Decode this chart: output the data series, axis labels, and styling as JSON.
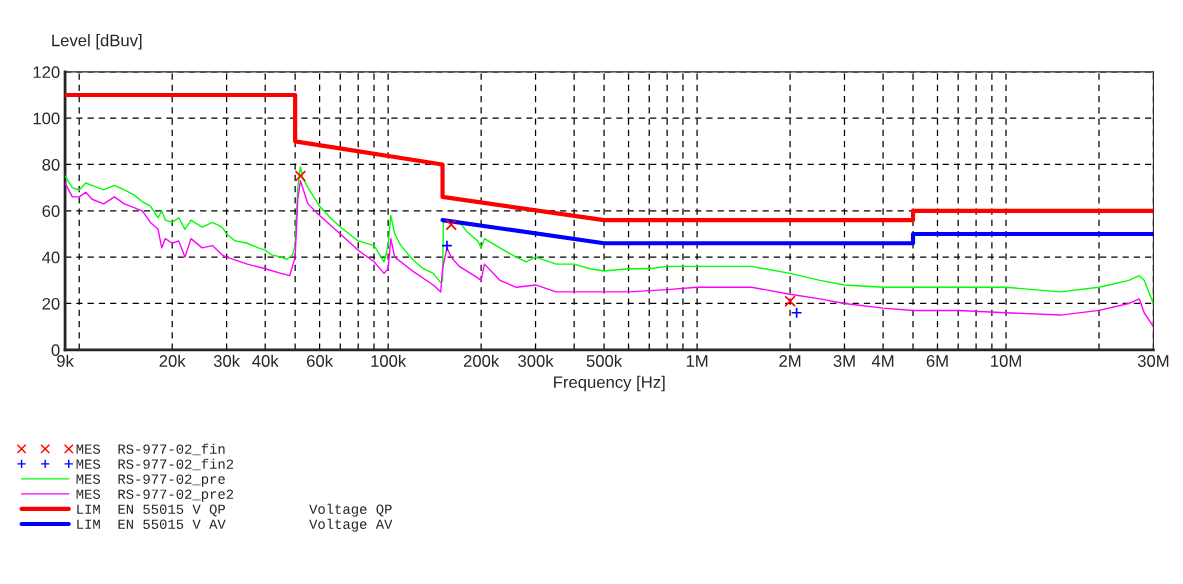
{
  "chart_data": {
    "type": "line",
    "xlabel": "Frequency [Hz]",
    "ylabel": "Level [dBuv]",
    "log": "x",
    "grid": true,
    "legend": "bottom",
    "xlim": [
      9000,
      30000000
    ],
    "ylim": [
      0,
      120
    ],
    "yticks": [
      0,
      20,
      40,
      60,
      80,
      100,
      120
    ],
    "xticks": [
      {
        "value": 9000,
        "label": "9k"
      },
      {
        "value": 10000,
        "label": null
      },
      {
        "value": 20000,
        "label": "20k"
      },
      {
        "value": 30000,
        "label": "30k"
      },
      {
        "value": 40000,
        "label": "40k"
      },
      {
        "value": 50000,
        "label": null
      },
      {
        "value": 60000,
        "label": "60k"
      },
      {
        "value": 70000,
        "label": null
      },
      {
        "value": 80000,
        "label": null
      },
      {
        "value": 90000,
        "label": null
      },
      {
        "value": 100000,
        "label": "100k"
      },
      {
        "value": 200000,
        "label": "200k"
      },
      {
        "value": 300000,
        "label": "300k"
      },
      {
        "value": 400000,
        "label": null
      },
      {
        "value": 500000,
        "label": "500k"
      },
      {
        "value": 600000,
        "label": null
      },
      {
        "value": 700000,
        "label": null
      },
      {
        "value": 800000,
        "label": null
      },
      {
        "value": 900000,
        "label": null
      },
      {
        "value": 1000000,
        "label": "1M"
      },
      {
        "value": 2000000,
        "label": "2M"
      },
      {
        "value": 3000000,
        "label": "3M"
      },
      {
        "value": 4000000,
        "label": "4M"
      },
      {
        "value": 5000000,
        "label": null
      },
      {
        "value": 6000000,
        "label": "6M"
      },
      {
        "value": 7000000,
        "label": null
      },
      {
        "value": 8000000,
        "label": null
      },
      {
        "value": 9000000,
        "label": null
      },
      {
        "value": 10000000,
        "label": "10M"
      },
      {
        "value": 20000000,
        "label": null
      },
      {
        "value": 30000000,
        "label": "30M"
      }
    ],
    "series": [
      {
        "name": "MES  RS-977-02_fin",
        "type": "scatter",
        "marker": "cross",
        "color": "#ff0000",
        "x": [
          52000,
          160000,
          2000000
        ],
        "values": [
          75,
          54,
          21
        ]
      },
      {
        "name": "MES  RS-977-02_fin2",
        "type": "scatter",
        "marker": "plus",
        "color": "#0000ff",
        "x": [
          155000,
          2100000
        ],
        "values": [
          45,
          16
        ]
      },
      {
        "name": "MES  RS-977-02_pre",
        "color": "#00ff00",
        "x": [
          9000,
          9500,
          10000,
          10500,
          11000,
          12000,
          13000,
          14000,
          15000,
          16000,
          17000,
          18000,
          18500,
          19000,
          20000,
          21000,
          22000,
          23000,
          25000,
          27000,
          29000,
          30000,
          32000,
          35000,
          38000,
          40000,
          42000,
          45000,
          47000,
          49000,
          50000,
          51000,
          52000,
          53000,
          55000,
          60000,
          65000,
          70000,
          80000,
          90000,
          97000,
          100000,
          102000,
          105000,
          110000,
          120000,
          130000,
          140000,
          148000,
          150000,
          151000,
          160000,
          170000,
          180000,
          195000,
          200000,
          205000,
          230000,
          260000,
          280000,
          300000,
          350000,
          400000,
          450000,
          500000,
          600000,
          700000,
          800000,
          1000000,
          1500000,
          2000000,
          2500000,
          3000000,
          4000000,
          5000000,
          7000000,
          10000000,
          15000000,
          20000000,
          25000000,
          27000000,
          28000000,
          30000000
        ],
        "values": [
          75,
          70,
          69,
          72,
          71,
          69,
          71,
          69,
          67,
          64,
          62,
          57,
          60,
          56,
          55,
          57,
          52,
          56,
          53,
          55,
          53,
          50,
          47,
          46,
          44,
          43,
          41,
          40,
          39,
          41,
          45,
          70,
          79,
          74,
          70,
          62,
          57,
          53,
          47,
          45,
          38,
          45,
          58,
          50,
          45,
          39,
          35,
          33,
          29,
          30,
          56,
          55,
          55,
          51,
          47,
          44,
          48,
          44,
          40,
          38,
          40,
          37,
          37,
          35,
          34,
          35,
          35,
          36,
          36,
          36,
          33,
          30,
          28,
          27,
          27,
          27,
          27,
          25,
          27,
          30,
          32,
          30,
          20
        ]
      },
      {
        "name": "MES  RS-977-02_pre2",
        "color": "#ff00ff",
        "x": [
          9000,
          9500,
          10000,
          10500,
          11000,
          12000,
          13000,
          14000,
          16000,
          17000,
          18000,
          18500,
          19000,
          20000,
          21000,
          22000,
          23000,
          25000,
          27000,
          29000,
          30000,
          35000,
          40000,
          45000,
          48000,
          50000,
          51000,
          52000,
          55000,
          60000,
          70000,
          80000,
          90000,
          97000,
          100000,
          102000,
          105000,
          120000,
          140000,
          148000,
          150000,
          155000,
          160000,
          170000,
          190000,
          200000,
          205000,
          230000,
          260000,
          300000,
          350000,
          400000,
          500000,
          600000,
          800000,
          1000000,
          1500000,
          2000000,
          2500000,
          3000000,
          4000000,
          5000000,
          7000000,
          10000000,
          15000000,
          20000000,
          25000000,
          27000000,
          28000000,
          30000000
        ],
        "values": [
          72,
          66,
          66,
          68,
          65,
          63,
          66,
          63,
          60,
          55,
          52,
          44,
          48,
          46,
          47,
          40,
          48,
          44,
          45,
          41,
          40,
          37,
          35,
          33,
          32,
          40,
          65,
          73,
          63,
          58,
          50,
          43,
          38,
          33,
          35,
          48,
          40,
          34,
          28,
          25,
          35,
          44,
          40,
          36,
          32,
          30,
          37,
          30,
          27,
          28,
          25,
          25,
          25,
          25,
          26,
          27,
          27,
          24,
          22,
          20,
          18,
          17,
          17,
          16,
          15,
          17,
          20,
          22,
          16,
          10
        ]
      },
      {
        "name": "LIM  EN 55015 V QP          Voltage QP",
        "color": "#ff0000",
        "x": [
          9000,
          50000,
          50000,
          150000,
          150000,
          500000,
          5000000,
          5000000,
          30000000
        ],
        "values": [
          110,
          110,
          90,
          80,
          66,
          56,
          56,
          60,
          60
        ]
      },
      {
        "name": "LIM  EN 55015 V AV          Voltage AV",
        "color": "#0000ff",
        "x": [
          150000,
          500000,
          5000000,
          5000000,
          30000000
        ],
        "values": [
          56,
          46,
          46,
          50,
          50
        ]
      }
    ]
  }
}
